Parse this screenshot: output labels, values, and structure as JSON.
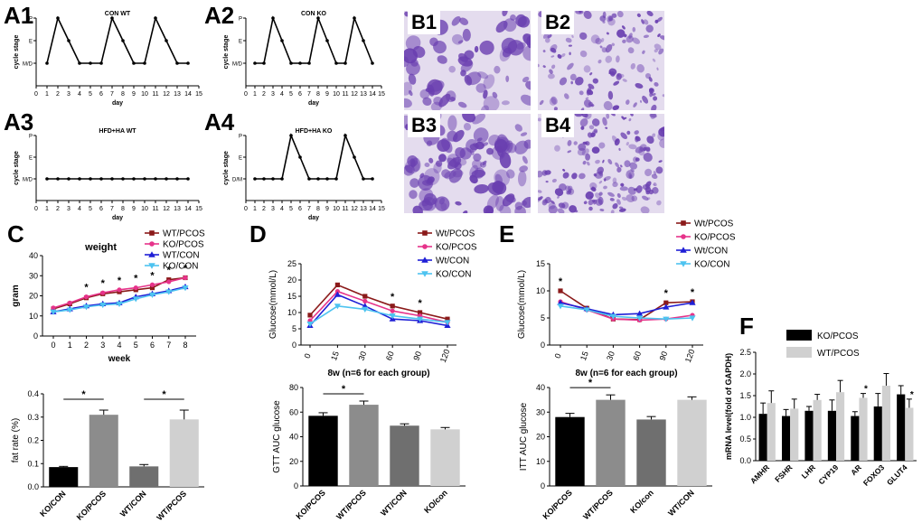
{
  "panels": {
    "A1": "A1",
    "A2": "A2",
    "A3": "A3",
    "A4": "A4",
    "B1": "B1",
    "B2": "B2",
    "B3": "B3",
    "B4": "B4",
    "C": "C",
    "D": "D",
    "E": "E",
    "F": "F"
  },
  "colors": {
    "wt_pcos": "#8b1a1a",
    "ko_pcos": "#e6338a",
    "wt_con": "#1f1fd6",
    "ko_con": "#4dc3f0",
    "bar_black": "#000000",
    "bar_dark": "#8c8c8c",
    "bar_mid": "#6f6f6f",
    "bar_light": "#d0d0d0",
    "stain_bg": "#e4dcee",
    "stain_cell": "#6a3fb0"
  },
  "chart_data": [
    {
      "id": "A1",
      "type": "line",
      "title": "CON WT",
      "xlabel": "day",
      "ylabel": "cycle stage",
      "x": [
        1,
        2,
        3,
        4,
        5,
        6,
        7,
        8,
        9,
        10,
        11,
        12,
        13,
        14
      ],
      "values": [
        2,
        4,
        3,
        2,
        2,
        2,
        4,
        3,
        2,
        2,
        4,
        3,
        2,
        2
      ],
      "x_ticks": [
        "0",
        "1",
        "2",
        "3",
        "4",
        "5",
        "6",
        "7",
        "8",
        "9",
        "10",
        "11",
        "12",
        "13",
        "14",
        "15"
      ],
      "y_ticks": [
        "M/D",
        "E",
        "P"
      ],
      "ylim": [
        1,
        4
      ]
    },
    {
      "id": "A2",
      "type": "line",
      "title": "CON KO",
      "xlabel": "day",
      "ylabel": "cycle stage",
      "x": [
        1,
        2,
        3,
        4,
        5,
        6,
        7,
        8,
        9,
        10,
        11,
        12,
        13,
        14
      ],
      "values": [
        2,
        2,
        4,
        3,
        2,
        2,
        2,
        4,
        3,
        2,
        2,
        4,
        3,
        2
      ],
      "x_ticks": [
        "0",
        "1",
        "2",
        "3",
        "4",
        "5",
        "6",
        "7",
        "8",
        "9",
        "10",
        "11",
        "12",
        "13",
        "14",
        "15"
      ],
      "y_ticks": [
        "M/D",
        "E",
        "P"
      ],
      "ylim": [
        1,
        4
      ]
    },
    {
      "id": "A3",
      "type": "line",
      "title": "HFD+HA   WT",
      "xlabel": "day",
      "ylabel": "cycle stage",
      "x": [
        1,
        2,
        3,
        4,
        5,
        6,
        7,
        8,
        9,
        10,
        11,
        12,
        13,
        14
      ],
      "values": [
        2,
        2,
        2,
        2,
        2,
        2,
        2,
        2,
        2,
        2,
        2,
        2,
        2,
        2
      ],
      "x_ticks": [
        "0",
        "1",
        "2",
        "3",
        "4",
        "5",
        "6",
        "7",
        "8",
        "9",
        "10",
        "11",
        "12",
        "13",
        "14",
        "15"
      ],
      "y_ticks": [
        "M/D",
        "E",
        "P"
      ],
      "ylim": [
        1,
        4
      ]
    },
    {
      "id": "A4",
      "type": "line",
      "title": "HFD+HA   KO",
      "xlabel": "day",
      "ylabel": "cycle stage",
      "x": [
        1,
        2,
        3,
        4,
        5,
        6,
        7,
        8,
        9,
        10,
        11,
        12,
        13,
        14
      ],
      "values": [
        2,
        2,
        2,
        2,
        4,
        3,
        2,
        2,
        2,
        2,
        4,
        3,
        2,
        2
      ],
      "x_ticks": [
        "0",
        "1",
        "2",
        "3",
        "4",
        "5",
        "6",
        "7",
        "8",
        "9",
        "10",
        "11",
        "12",
        "13",
        "14",
        "15"
      ],
      "y_ticks": [
        "D/M",
        "E",
        "P"
      ],
      "ylim": [
        1,
        4
      ]
    },
    {
      "id": "C-weight",
      "type": "line",
      "title": "weight",
      "xlabel": "week",
      "ylabel": "gram",
      "x": [
        0,
        1,
        2,
        3,
        4,
        5,
        6,
        7,
        8
      ],
      "ylim": [
        0,
        40
      ],
      "y_ticks": [
        0,
        10,
        20,
        30,
        40
      ],
      "x_ticks": [
        "0",
        "1",
        "2",
        "3",
        "4",
        "5",
        "6",
        "7",
        "8"
      ],
      "series": [
        {
          "name": "WT/PCOS",
          "color": "wt_pcos",
          "marker": "square",
          "values": [
            13.5,
            16,
            19,
            21,
            22,
            23,
            24,
            28,
            29
          ]
        },
        {
          "name": "KO/PCOS",
          "color": "ko_pcos",
          "marker": "circle",
          "values": [
            14,
            16.5,
            19.5,
            21.5,
            23,
            24,
            25.5,
            27,
            29
          ]
        },
        {
          "name": "WT/CON",
          "color": "wt_con",
          "marker": "triangle-up",
          "values": [
            12,
            13.5,
            15,
            16,
            16.5,
            19.5,
            21,
            22.5,
            24.5
          ]
        },
        {
          "name": "KO/CON",
          "color": "ko_con",
          "marker": "triangle-down",
          "values": [
            12,
            13,
            14.5,
            15.5,
            16,
            18.5,
            20.5,
            22,
            24
          ]
        }
      ],
      "annotations": [
        {
          "x": 2,
          "text": "*"
        },
        {
          "x": 3,
          "text": "*"
        },
        {
          "x": 4,
          "text": "*"
        },
        {
          "x": 5,
          "text": "*"
        },
        {
          "x": 6,
          "text": "*"
        },
        {
          "x": 7,
          "text": "*"
        },
        {
          "x": 8,
          "text": "*"
        }
      ]
    },
    {
      "id": "C-fat",
      "type": "bar",
      "ylabel": "fat rate (%)",
      "ylim": [
        0,
        0.4
      ],
      "y_ticks": [
        "0.0",
        "0.1",
        "0.2",
        "0.3",
        "0.4"
      ],
      "categories": [
        "KO/CON",
        "KO/PCOS",
        "WT/CON",
        "WT/PCOS"
      ],
      "values": [
        0.085,
        0.31,
        0.088,
        0.29
      ],
      "errors": [
        0.003,
        0.02,
        0.008,
        0.04
      ],
      "bar_colors": [
        "bar_black",
        "bar_dark",
        "bar_mid",
        "bar_light"
      ],
      "significance": [
        {
          "from": 0,
          "to": 1,
          "text": "*"
        },
        {
          "from": 2,
          "to": 3,
          "text": "*"
        }
      ]
    },
    {
      "id": "D-gtt",
      "type": "line",
      "xlabel": "8w   (n=6 for each group)",
      "ylabel": "Glucose(mmol/L)",
      "x": [
        "0",
        "15",
        "30",
        "60",
        "90",
        "120"
      ],
      "ylim": [
        0,
        25
      ],
      "y_ticks": [
        0,
        5,
        10,
        15,
        20,
        25
      ],
      "series": [
        {
          "name": "Wt/PCOS",
          "color": "wt_pcos",
          "marker": "square",
          "values": [
            9.2,
            18.5,
            15,
            12,
            10,
            8
          ]
        },
        {
          "name": "KO/PCOS",
          "color": "ko_pcos",
          "marker": "circle",
          "values": [
            7.5,
            16.5,
            13.5,
            10.5,
            9,
            7
          ]
        },
        {
          "name": "Wt/CON",
          "color": "wt_con",
          "marker": "triangle-up",
          "values": [
            6,
            15.5,
            12,
            8,
            7.5,
            6
          ]
        },
        {
          "name": "KO/CON",
          "color": "ko_con",
          "marker": "triangle-down",
          "values": [
            6.5,
            12,
            11,
            9,
            8,
            7
          ]
        }
      ],
      "annotations": [
        {
          "x": "60",
          "text": "*"
        },
        {
          "x": "90",
          "text": "*"
        }
      ]
    },
    {
      "id": "D-auc",
      "type": "bar",
      "ylabel": "GTT  AUC glucose",
      "ylim": [
        0,
        80
      ],
      "y_ticks": [
        "0",
        "20",
        "40",
        "60",
        "80"
      ],
      "categories": [
        "KO/PCOS",
        "WT/PCOS",
        "WT/CON",
        "KO/con"
      ],
      "values": [
        57,
        66,
        49,
        46
      ],
      "errors": [
        2.5,
        3,
        1.5,
        1.5
      ],
      "bar_colors": [
        "bar_black",
        "bar_dark",
        "bar_mid",
        "bar_light"
      ],
      "significance": [
        {
          "from": 0,
          "to": 1,
          "text": "*"
        }
      ]
    },
    {
      "id": "E-itt",
      "type": "line",
      "xlabel": "8w   (n=6 for each group)",
      "ylabel": "Glucose(mmol/L)",
      "x": [
        "0",
        "15",
        "30",
        "60",
        "90",
        "120"
      ],
      "ylim": [
        0,
        15
      ],
      "y_ticks": [
        0,
        5,
        10,
        15
      ],
      "series": [
        {
          "name": "Wt/PCOS",
          "color": "wt_pcos",
          "marker": "square",
          "values": [
            10,
            6.8,
            4.8,
            4.7,
            7.8,
            8
          ]
        },
        {
          "name": "KO/PCOS",
          "color": "ko_pcos",
          "marker": "circle",
          "values": [
            8,
            6.5,
            4.8,
            4.6,
            4.8,
            5.5
          ]
        },
        {
          "name": "Wt/CON",
          "color": "wt_con",
          "marker": "triangle-up",
          "values": [
            7.8,
            6.7,
            5.6,
            5.8,
            7,
            7.8
          ]
        },
        {
          "name": "KO/CON",
          "color": "ko_con",
          "marker": "triangle-down",
          "values": [
            7.2,
            6.5,
            5.3,
            5,
            4.8,
            5
          ]
        }
      ],
      "annotations": [
        {
          "x": "0",
          "text": "*"
        },
        {
          "x": "90",
          "text": "*"
        },
        {
          "x": "120",
          "text": "*"
        }
      ]
    },
    {
      "id": "E-auc",
      "type": "bar",
      "ylabel": "ITT  AUC glucose",
      "ylim": [
        0,
        40
      ],
      "y_ticks": [
        "0",
        "10",
        "20",
        "30",
        "40"
      ],
      "categories": [
        "KO/PCOS",
        "WT/PCOS",
        "KO/con",
        "WT/CON"
      ],
      "values": [
        28,
        35,
        27,
        35
      ],
      "errors": [
        1.5,
        2,
        1.2,
        1.2
      ],
      "bar_colors": [
        "bar_black",
        "bar_dark",
        "bar_mid",
        "bar_light"
      ],
      "significance": [
        {
          "from": 0,
          "to": 1,
          "text": "*"
        }
      ]
    },
    {
      "id": "F",
      "type": "bar",
      "ylabel": "mRNA level(fold of GAPDH)",
      "ylim": [
        0,
        2.5
      ],
      "y_ticks": [
        "0.0",
        "0.5",
        "1.0",
        "1.5",
        "2.0",
        "2.5"
      ],
      "categories": [
        "AMHR",
        "FSHR",
        "LHR",
        "CYP19",
        "AR",
        "FOXO3",
        "GLUT4"
      ],
      "series": [
        {
          "name": "KO/PCOS",
          "color": "bar_black",
          "values": [
            1.08,
            1.03,
            1.15,
            1.15,
            1.03,
            1.25,
            1.53
          ],
          "errors": [
            0.25,
            0.15,
            0.1,
            0.25,
            0.1,
            0.3,
            0.2
          ]
        },
        {
          "name": "WT/PCOS",
          "color": "bar_light",
          "values": [
            1.33,
            1.2,
            1.4,
            1.58,
            1.45,
            1.73,
            1.22
          ],
          "errors": [
            0.28,
            0.22,
            0.13,
            0.27,
            0.1,
            0.28,
            0.2
          ]
        }
      ],
      "annotations": [
        {
          "category": "AR",
          "text": "*"
        },
        {
          "category": "GLUT4",
          "text": "*"
        }
      ]
    }
  ]
}
